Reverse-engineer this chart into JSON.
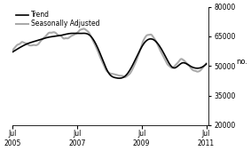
{
  "title": "",
  "ylabel": "no.",
  "ylim": [
    20000,
    80000
  ],
  "yticks": [
    20000,
    35000,
    50000,
    65000,
    80000
  ],
  "xlim_start": 2005.5,
  "xlim_end": 2011.58,
  "xtick_positions": [
    2005.5,
    2007.5,
    2009.5,
    2011.5
  ],
  "xtick_labels": [
    "Jul\n2005",
    "Jul\n2007",
    "Jul\n2009",
    "Jul\n2011"
  ],
  "legend_entries": [
    "Trend",
    "Seasonally Adjusted"
  ],
  "trend_color": "#000000",
  "sa_color": "#aaaaaa",
  "background_color": "#ffffff",
  "trend_lw": 1.2,
  "sa_lw": 1.5,
  "trend_knots_x": [
    2005.5,
    2005.75,
    2006.0,
    2006.3,
    2006.6,
    2007.0,
    2007.3,
    2007.6,
    2007.9,
    2008.2,
    2008.5,
    2008.7,
    2009.0,
    2009.3,
    2009.6,
    2009.9,
    2010.2,
    2010.5,
    2010.75,
    2011.0,
    2011.3,
    2011.5
  ],
  "trend_knots_y": [
    57000,
    59500,
    61500,
    63000,
    64500,
    65500,
    66500,
    66500,
    65500,
    57000,
    46000,
    44000,
    45000,
    53000,
    62000,
    63000,
    56000,
    49000,
    51500,
    50000,
    49000,
    51000
  ]
}
